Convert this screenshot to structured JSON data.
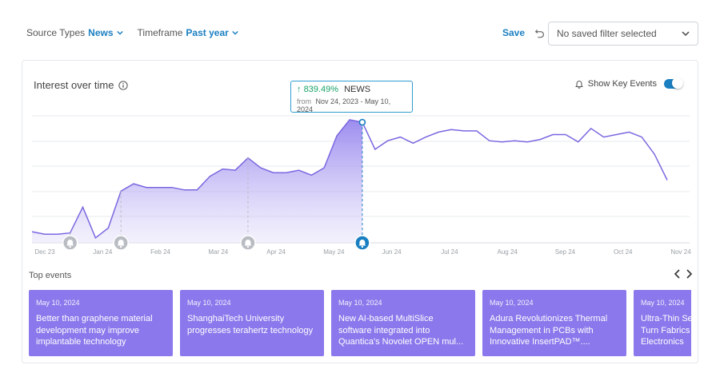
{
  "filters": {
    "source_label": "Source Types",
    "source_value": "News",
    "timeframe_label": "Timeframe",
    "timeframe_value": "Past year"
  },
  "toolbar": {
    "save_label": "Save",
    "saved_filter_placeholder": "No saved filter selected"
  },
  "card": {
    "title": "Interest over time",
    "key_events_label": "Show Key Events",
    "key_events_enabled": true
  },
  "tooltip": {
    "percent": "839.49%",
    "series": "NEWS",
    "from_label": "from",
    "range": "Nov 24, 2023 - May 10, 2024"
  },
  "chart_data": {
    "type": "area",
    "x_ticks": [
      "Dec 23",
      "Jan 24",
      "Feb 24",
      "Mar 24",
      "Apr 24",
      "May 24",
      "Jun 24",
      "Jul 24",
      "Aug 24",
      "Sep 24",
      "Oct 24",
      "Nov 24"
    ],
    "selected_index": 26,
    "key_event_indices": [
      3,
      7,
      17,
      26
    ],
    "values": [
      9,
      7,
      7,
      8,
      29,
      4,
      12,
      42,
      48,
      45,
      45,
      45,
      43,
      43,
      54,
      60,
      59,
      69,
      61,
      57,
      57,
      59,
      55,
      61,
      87,
      100,
      98,
      76,
      83,
      86,
      81,
      86,
      90,
      92,
      91,
      91,
      83,
      82,
      83,
      82,
      84,
      88,
      88,
      82,
      93,
      86,
      88,
      90,
      86,
      72,
      51
    ],
    "colors": {
      "line": "#7a67e0",
      "area_top": "#8b78ec",
      "area_bottom": "#e8e3fb",
      "selected": "#1a7fc1",
      "marker": "#b9bdc3"
    }
  },
  "top_events": {
    "label": "Top events",
    "items": [
      {
        "date": "May 10, 2024",
        "title": "Better than graphene material development may improve implantable technology"
      },
      {
        "date": "May 10, 2024",
        "title": "ShanghaiTech University progresses terahertz technology"
      },
      {
        "date": "May 10, 2024",
        "title": "New AI-based MultiSlice software integrated into Quantica's Novolet OPEN mul..."
      },
      {
        "date": "May 10, 2024",
        "title": "Adura Revolutionizes Thermal Management in PCBs with Innovative InsertPAD™...."
      },
      {
        "date": "May 10, 2024",
        "title": "Ultra-Thin Semiconductor Fibers Turn Fabrics Into Wearable Electronics"
      }
    ]
  }
}
